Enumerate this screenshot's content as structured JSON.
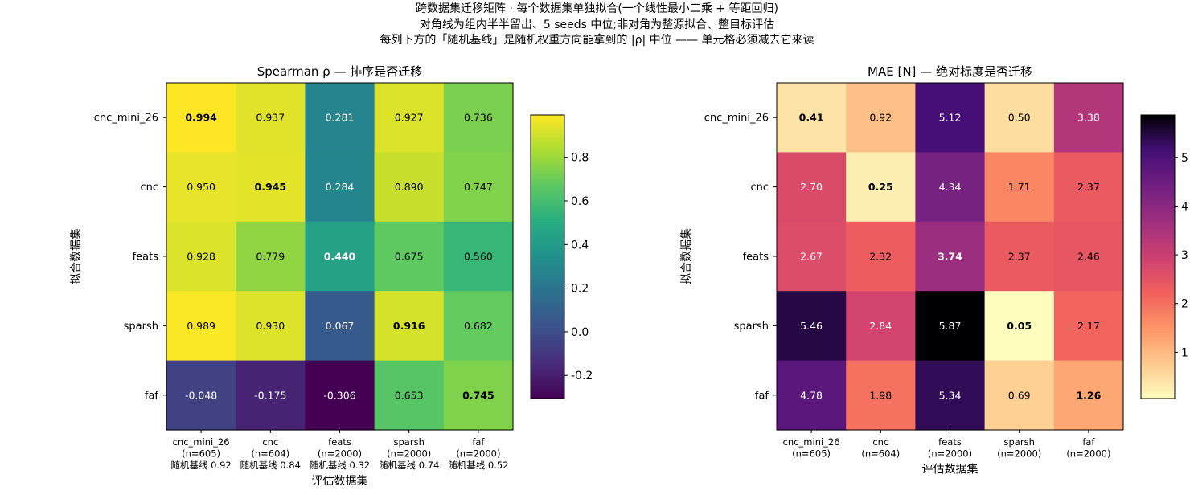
{
  "figure": {
    "suptitle_lines": [
      "跨数据集迁移矩阵 · 每个数据集单独拟合(一个线性最小二乘 + 等距回归)",
      "对角线为组内半半留出、5 seeds 中位;非对角为整源拟合、整目标评估",
      "每列下方的「随机基线」是随机权重方向能拿到的 |ρ| 中位 —— 单元格必须减去它来读"
    ]
  },
  "chart_data": [
    {
      "type": "heatmap",
      "title": "Spearman ρ — 排序是否迁移",
      "xlabel": "评估数据集",
      "ylabel": "拟合数据集",
      "rows": [
        "cnc_mini_26",
        "cnc",
        "feats",
        "sparsh",
        "faf"
      ],
      "columns": [
        "cnc_mini_26",
        "cnc",
        "feats",
        "sparsh",
        "faf"
      ],
      "column_labels": [
        [
          "cnc_mini_26",
          "(n=605)",
          "随机基线 0.92"
        ],
        [
          "cnc",
          "(n=604)",
          "随机基线 0.84"
        ],
        [
          "feats",
          "(n=2000)",
          "随机基线 0.32"
        ],
        [
          "sparsh",
          "(n=2000)",
          "随机基线 0.74"
        ],
        [
          "faf",
          "(n=2000)",
          "随机基线 0.52"
        ]
      ],
      "values": [
        [
          0.994,
          0.937,
          0.281,
          0.927,
          0.736
        ],
        [
          0.95,
          0.945,
          0.284,
          0.89,
          0.747
        ],
        [
          0.928,
          0.779,
          0.44,
          0.675,
          0.56
        ],
        [
          0.989,
          0.93,
          0.067,
          0.916,
          0.682
        ],
        [
          -0.048,
          -0.175,
          -0.306,
          0.653,
          0.745
        ]
      ],
      "value_labels": [
        [
          "0.994",
          "0.937",
          "0.281",
          "0.927",
          "0.736"
        ],
        [
          "0.950",
          "0.945",
          "0.284",
          "0.890",
          "0.747"
        ],
        [
          "0.928",
          "0.779",
          "0.440",
          "0.675",
          "0.560"
        ],
        [
          "0.989",
          "0.930",
          "0.067",
          "0.916",
          "0.682"
        ],
        [
          "-0.048",
          "-0.175",
          "-0.306",
          "0.653",
          "0.745"
        ]
      ],
      "colormap": "viridis",
      "vmin": -0.306,
      "vmax": 0.994,
      "colorbar_ticks": [
        -0.2,
        0.0,
        0.2,
        0.4,
        0.6,
        0.8
      ],
      "colorbar_tick_labels": [
        "-0.2",
        "0.0",
        "0.2",
        "0.4",
        "0.6",
        "0.8"
      ],
      "diagonal_bold": true
    },
    {
      "type": "heatmap",
      "title": "MAE [N] — 绝对标度是否迁移",
      "xlabel": "评估数据集",
      "ylabel": "拟合数据集",
      "rows": [
        "cnc_mini_26",
        "cnc",
        "feats",
        "sparsh",
        "faf"
      ],
      "columns": [
        "cnc_mini_26",
        "cnc",
        "feats",
        "sparsh",
        "faf"
      ],
      "column_labels": [
        [
          "cnc_mini_26",
          "(n=605)"
        ],
        [
          "cnc",
          "(n=604)"
        ],
        [
          "feats",
          "(n=2000)"
        ],
        [
          "sparsh",
          "(n=2000)"
        ],
        [
          "faf",
          "(n=2000)"
        ]
      ],
      "values": [
        [
          0.41,
          0.92,
          5.12,
          0.5,
          3.38
        ],
        [
          2.7,
          0.25,
          4.34,
          1.71,
          2.37
        ],
        [
          2.67,
          2.32,
          3.74,
          2.37,
          2.46
        ],
        [
          5.46,
          2.84,
          5.87,
          0.05,
          2.17
        ],
        [
          4.78,
          1.98,
          5.34,
          0.69,
          1.26
        ]
      ],
      "value_labels": [
        [
          "0.41",
          "0.92",
          "5.12",
          "0.50",
          "3.38"
        ],
        [
          "2.70",
          "0.25",
          "4.34",
          "1.71",
          "2.37"
        ],
        [
          "2.67",
          "2.32",
          "3.74",
          "2.37",
          "2.46"
        ],
        [
          "5.46",
          "2.84",
          "5.87",
          "0.05",
          "2.17"
        ],
        [
          "4.78",
          "1.98",
          "5.34",
          "0.69",
          "1.26"
        ]
      ],
      "colormap": "magma_r",
      "vmin": 0.05,
      "vmax": 5.87,
      "colorbar_ticks": [
        1,
        2,
        3,
        4,
        5
      ],
      "colorbar_tick_labels": [
        "1",
        "2",
        "3",
        "4",
        "5"
      ],
      "diagonal_bold": true
    }
  ]
}
